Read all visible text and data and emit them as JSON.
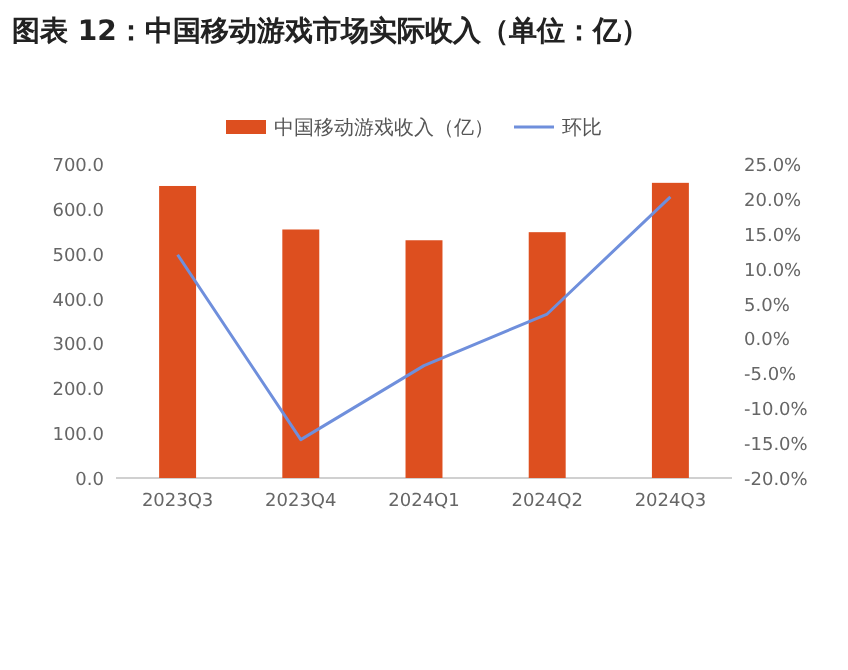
{
  "chart_data": {
    "type": "bar",
    "title": "图表 12：中国移动游戏市场实际收入（单位：亿）",
    "categories": [
      "2023Q3",
      "2023Q4",
      "2024Q1",
      "2024Q2",
      "2024Q3"
    ],
    "series": [
      {
        "name": "中国移动游戏收入（亿）",
        "color": "#dd4f1f",
        "values": [
          651,
          554,
          530,
          548,
          658
        ]
      },
      {
        "name": "环比",
        "type": "line",
        "axis": "y2",
        "color": "#6f8fdc",
        "values": [
          12.0,
          -14.5,
          -3.9,
          3.5,
          20.3
        ]
      }
    ],
    "ylim": [
      0,
      700
    ],
    "yticks": [
      {
        "value": 0,
        "label": "0.0"
      },
      {
        "value": 100,
        "label": "100.0"
      },
      {
        "value": 200,
        "label": "200.0"
      },
      {
        "value": 300,
        "label": "300.0"
      },
      {
        "value": 400,
        "label": "400.0"
      },
      {
        "value": 500,
        "label": "500.0"
      },
      {
        "value": 600,
        "label": "600.0"
      },
      {
        "value": 700,
        "label": "700.0"
      }
    ],
    "y2lim": [
      -20,
      25
    ],
    "y2ticks": [
      {
        "value": -20,
        "label": "-20.0%"
      },
      {
        "value": -15,
        "label": "-15.0%"
      },
      {
        "value": -10,
        "label": "-10.0%"
      },
      {
        "value": -5,
        "label": "-5.0%"
      },
      {
        "value": 0,
        "label": "0.0%"
      },
      {
        "value": 5,
        "label": "5.0%"
      },
      {
        "value": 10,
        "label": "10.0%"
      },
      {
        "value": 15,
        "label": "15.0%"
      },
      {
        "value": 20,
        "label": "20.0%"
      },
      {
        "value": 25,
        "label": "25.0%"
      }
    ],
    "legend": "top",
    "grid": false
  }
}
